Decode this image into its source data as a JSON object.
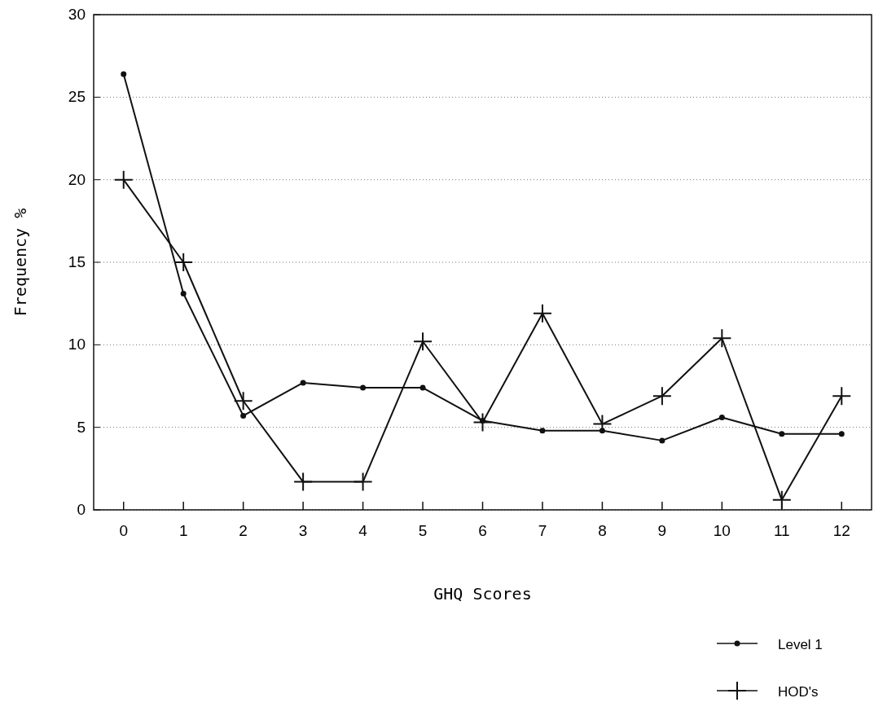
{
  "chart_data": {
    "type": "line",
    "xlabel": "GHQ Scores",
    "ylabel": "Frequency %",
    "x": [
      0,
      1,
      2,
      3,
      4,
      5,
      6,
      7,
      8,
      9,
      10,
      11,
      12
    ],
    "series": [
      {
        "name": "Level 1",
        "color": "#111111",
        "marker": "circle",
        "values": [
          26.4,
          13.1,
          5.7,
          7.7,
          7.4,
          7.4,
          5.4,
          4.8,
          4.8,
          4.2,
          5.6,
          4.6,
          4.6
        ]
      },
      {
        "name": "HOD's",
        "color": "#111111",
        "marker": "cross",
        "values": [
          20,
          15,
          6.6,
          1.7,
          1.7,
          10.2,
          5.3,
          11.9,
          5.2,
          6.9,
          10.4,
          0.6,
          6.9
        ]
      }
    ],
    "xlim": [
      -0.5,
      12.5
    ],
    "xticks": [
      0,
      1,
      2,
      3,
      4,
      5,
      6,
      7,
      8,
      9,
      10,
      11,
      12
    ],
    "ylim": [
      0,
      30
    ],
    "yticks": [
      0,
      5,
      10,
      15,
      20,
      25,
      30
    ],
    "grid": "y",
    "legend": "bottom right",
    "line_style": "solid"
  }
}
